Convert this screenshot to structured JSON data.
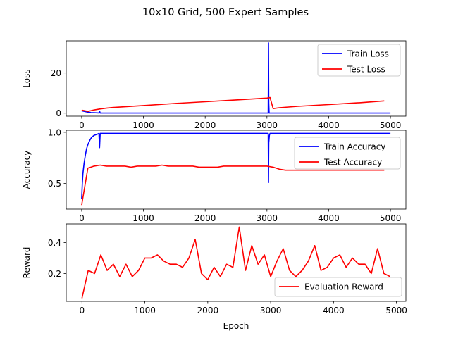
{
  "suptitle": "10x10 Grid, 500 Expert Samples",
  "colors": {
    "blue": "#0000ff",
    "red": "#ff0000"
  },
  "chart_data": [
    {
      "type": "line",
      "id": "loss",
      "title": "",
      "xlabel": "",
      "ylabel": "Loss",
      "xlim": [
        -250,
        5250
      ],
      "ylim": [
        -1.5,
        36
      ],
      "xticks": [
        0,
        1000,
        2000,
        3000,
        4000,
        5000
      ],
      "yticks": [
        0,
        20
      ],
      "legend_position": "upper right",
      "series": [
        {
          "name": "Train Loss",
          "color": "#0000ff",
          "x": [
            0,
            50,
            100,
            150,
            200,
            280,
            290,
            300,
            500,
            1000,
            2000,
            3000,
            3020,
            3025,
            3030,
            3035,
            3040,
            3100,
            4000,
            5000
          ],
          "y": [
            1.2,
            0.8,
            0.5,
            0.3,
            0.2,
            0.1,
            1.0,
            0.05,
            0.05,
            0.05,
            0.05,
            0.05,
            0.05,
            35,
            5,
            0.05,
            0.05,
            0.05,
            0.05,
            0.05
          ]
        },
        {
          "name": "Test Loss",
          "color": "#ff0000",
          "x": [
            0,
            100,
            200,
            300,
            400,
            500,
            1000,
            1500,
            2000,
            2500,
            3000,
            3050,
            3100,
            3200,
            3500,
            4000,
            4500,
            4900
          ],
          "y": [
            1.5,
            0.9,
            1.6,
            2.1,
            2.5,
            2.8,
            3.8,
            4.8,
            5.7,
            6.6,
            7.5,
            7.8,
            2.3,
            2.7,
            3.4,
            4.3,
            5.2,
            6.1
          ]
        }
      ]
    },
    {
      "type": "line",
      "id": "accuracy",
      "title": "",
      "xlabel": "",
      "ylabel": "Accuracy",
      "xlim": [
        -250,
        5250
      ],
      "ylim": [
        0.25,
        1.02
      ],
      "xticks": [
        0,
        1000,
        2000,
        3000,
        4000,
        5000
      ],
      "yticks": [
        0.5,
        1.0
      ],
      "ytick_labels": [
        "0.5",
        "1.0"
      ],
      "legend_position": "upper right",
      "series": [
        {
          "name": "Train Accuracy",
          "color": "#0000ff",
          "x": [
            0,
            10,
            20,
            40,
            60,
            80,
            100,
            130,
            160,
            200,
            250,
            280,
            290,
            300,
            310,
            500,
            1000,
            2000,
            3000,
            3020,
            3025,
            3030,
            3040,
            3050,
            3100,
            4000,
            5000
          ],
          "y": [
            0.35,
            0.5,
            0.6,
            0.7,
            0.78,
            0.84,
            0.88,
            0.92,
            0.95,
            0.97,
            0.98,
            0.99,
            0.85,
            0.99,
            0.99,
            0.99,
            0.99,
            0.99,
            0.99,
            0.99,
            0.51,
            0.9,
            0.97,
            0.99,
            0.99,
            0.99,
            0.99
          ]
        },
        {
          "name": "Test Accuracy",
          "color": "#ff0000",
          "x": [
            0,
            100,
            200,
            300,
            400,
            500,
            600,
            700,
            800,
            900,
            1000,
            1100,
            1200,
            1300,
            1400,
            1500,
            1600,
            1700,
            1800,
            1900,
            2000,
            2100,
            2200,
            2300,
            2400,
            2500,
            2600,
            2700,
            2800,
            2900,
            3000,
            3100,
            3200,
            3300,
            3400,
            3500,
            3600,
            3700,
            3800,
            3900,
            4000,
            4100,
            4200,
            4300,
            4400,
            4500,
            4600,
            4700,
            4800,
            4900
          ],
          "y": [
            0.29,
            0.65,
            0.67,
            0.68,
            0.67,
            0.67,
            0.67,
            0.67,
            0.66,
            0.67,
            0.67,
            0.67,
            0.67,
            0.68,
            0.67,
            0.67,
            0.67,
            0.67,
            0.67,
            0.66,
            0.66,
            0.66,
            0.66,
            0.67,
            0.67,
            0.67,
            0.67,
            0.67,
            0.67,
            0.67,
            0.67,
            0.66,
            0.64,
            0.63,
            0.63,
            0.63,
            0.63,
            0.63,
            0.63,
            0.63,
            0.63,
            0.63,
            0.63,
            0.63,
            0.63,
            0.63,
            0.63,
            0.63,
            0.63,
            0.63
          ]
        }
      ]
    },
    {
      "type": "line",
      "id": "reward",
      "title": "",
      "xlabel": "Epoch",
      "ylabel": "Reward",
      "xlim": [
        -250,
        5150
      ],
      "ylim": [
        0.02,
        0.52
      ],
      "xticks": [
        0,
        1000,
        2000,
        3000,
        4000,
        5000
      ],
      "yticks": [
        0.2,
        0.4
      ],
      "legend_position": "lower right",
      "series": [
        {
          "name": "Evaluation Reward",
          "color": "#ff0000",
          "x": [
            0,
            100,
            200,
            300,
            400,
            500,
            600,
            700,
            800,
            900,
            1000,
            1100,
            1200,
            1300,
            1400,
            1500,
            1600,
            1700,
            1800,
            1900,
            2000,
            2100,
            2200,
            2300,
            2400,
            2500,
            2600,
            2700,
            2800,
            2900,
            3000,
            3100,
            3200,
            3300,
            3400,
            3500,
            3600,
            3700,
            3800,
            3900,
            4000,
            4100,
            4200,
            4300,
            4400,
            4500,
            4600,
            4700,
            4800,
            4900
          ],
          "y": [
            0.04,
            0.22,
            0.2,
            0.32,
            0.22,
            0.26,
            0.18,
            0.26,
            0.18,
            0.22,
            0.3,
            0.3,
            0.32,
            0.28,
            0.26,
            0.26,
            0.24,
            0.3,
            0.42,
            0.2,
            0.16,
            0.24,
            0.18,
            0.26,
            0.24,
            0.5,
            0.22,
            0.38,
            0.26,
            0.32,
            0.18,
            0.28,
            0.36,
            0.22,
            0.18,
            0.22,
            0.28,
            0.38,
            0.22,
            0.24,
            0.3,
            0.32,
            0.24,
            0.3,
            0.26,
            0.26,
            0.2,
            0.36,
            0.2,
            0.18
          ]
        }
      ]
    }
  ]
}
